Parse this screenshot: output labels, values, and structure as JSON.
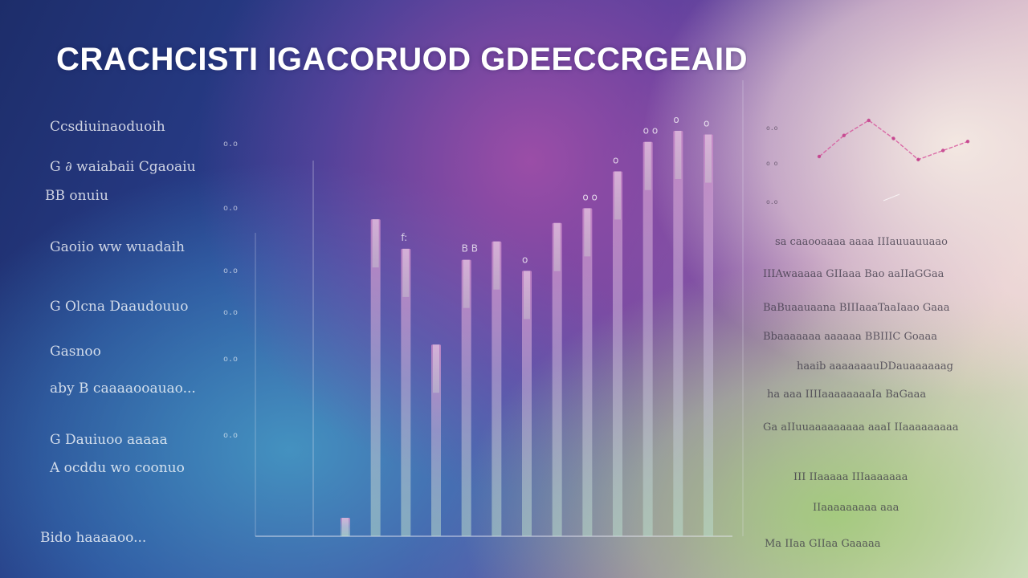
{
  "title": "CRACHCISTI IGACORUOD GDEECCRGEAID",
  "left_labels": [
    "Ccsdiuinaoduoih",
    "G ∂ waiabaii  Cgaoaiu",
    "BB onuiu",
    "Gaoiio ww wuadaih",
    "G Olcna Daaudouuo",
    "Gasnoo",
    "aby  B caaaaooauao...",
    "G Dauiuoo aaaaa",
    "A ocddu wo coonuo",
    "Bido  haaaaoo..."
  ],
  "chart_data": {
    "type": "bar",
    "title": "CRACHCISTI IGACORUOD GDEECCRGEAID",
    "y_tick_labels": [
      "o.o",
      "o.o",
      "o.o",
      "o.o",
      "o.o",
      "o.o",
      "o.o"
    ],
    "values": [
      5,
      86,
      78,
      52,
      75,
      80,
      72,
      85,
      89,
      99,
      107,
      110,
      109
    ],
    "ylim": [
      0,
      115
    ],
    "bar_labels": [
      "",
      "",
      "f:",
      "",
      "B B",
      "",
      "o",
      "",
      "o o",
      "o",
      "o o",
      "o",
      "o"
    ],
    "colors": {
      "bar_low": "#b9dccb",
      "bar_high": "#c98ac8",
      "axis": "#e8e8f4"
    }
  },
  "mini_chart": {
    "y_tick_labels": [
      "o.o",
      "o o",
      "o.o"
    ],
    "points": [
      {
        "x": 0,
        "y": 0.2
      },
      {
        "x": 1,
        "y": 0.55
      },
      {
        "x": 2,
        "y": 0.8
      },
      {
        "x": 3,
        "y": 0.5
      },
      {
        "x": 4,
        "y": 0.15
      },
      {
        "x": 5,
        "y": 0.3
      },
      {
        "x": 6,
        "y": 0.45
      }
    ],
    "colors": {
      "line": "#d6509a",
      "point": "#c23a88"
    }
  },
  "right_lines": [
    "sa caaooaaaa  aaaa  IIIauuauuaao",
    "IIIAwaaaaa  GIIaaa Bao  aaIIaGGaa",
    "BaBuaauaana  BIIIaaaTaaIaao  Gaaa",
    "Bbaaaaaaa  aaaaaa BBIIIC Goaaa",
    "haaib  aaaaaaauDDauaaaaaag",
    "ha aaa IIIIaaaaaaaaIa BaGaaa",
    "Ga aIIuuaaaaaaaaa aaaI IIaaaaaaaaa",
    "III IIaaaaa  IIIaaaaaaa",
    "IIaaaaaaaaa  aaa",
    "Ma  IIaa  GIIaa  Gaaaaa"
  ]
}
